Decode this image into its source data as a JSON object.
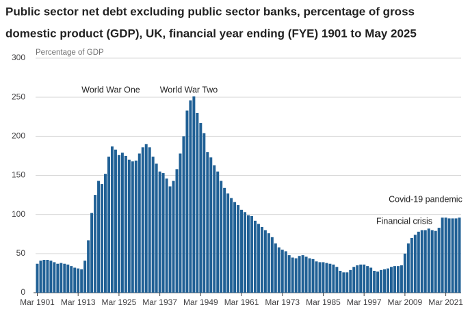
{
  "chart_data": {
    "type": "bar",
    "title": [
      "Public sector net debt excluding public sector banks, percentage of gross",
      "domestic product (GDP), UK, financial year ending (FYE) 1901 to May 2025"
    ],
    "y_label": "Percentage of GDP",
    "color": "#206095",
    "grid": true,
    "ylim": [
      0,
      300
    ],
    "yticks": [
      0,
      50,
      100,
      150,
      200,
      250,
      300
    ],
    "annotations": [
      "World War One",
      "World War Two",
      "Financial crisis",
      "Covid-19 pandemic"
    ],
    "categories": [
      "Mar 1901",
      null,
      null,
      null,
      null,
      null,
      null,
      null,
      null,
      null,
      null,
      null,
      "Mar 1913",
      null,
      null,
      null,
      null,
      null,
      null,
      null,
      null,
      null,
      null,
      null,
      "Mar 1925",
      null,
      null,
      null,
      null,
      null,
      null,
      null,
      null,
      null,
      null,
      null,
      "Mar 1937",
      null,
      null,
      null,
      null,
      null,
      null,
      null,
      null,
      null,
      null,
      null,
      "Mar 1949",
      null,
      null,
      null,
      null,
      null,
      null,
      null,
      null,
      null,
      null,
      null,
      "Mar 1961",
      null,
      null,
      null,
      null,
      null,
      null,
      null,
      null,
      null,
      null,
      null,
      "Mar 1973",
      null,
      null,
      null,
      null,
      null,
      null,
      null,
      null,
      null,
      null,
      null,
      "Mar 1985",
      null,
      null,
      null,
      null,
      null,
      null,
      null,
      null,
      null,
      null,
      null,
      "Mar 1997",
      null,
      null,
      null,
      null,
      null,
      null,
      null,
      null,
      null,
      null,
      null,
      "Mar 2009",
      null,
      null,
      null,
      null,
      null,
      null,
      null,
      null,
      null,
      null,
      null,
      "Mar 2021",
      null,
      null,
      null,
      null
    ],
    "values": [
      37,
      41,
      42,
      42,
      41,
      39,
      37,
      38,
      37,
      36,
      34,
      32,
      31,
      30,
      41,
      67,
      102,
      125,
      143,
      139,
      152,
      174,
      187,
      183,
      176,
      179,
      175,
      170,
      168,
      169,
      178,
      186,
      190,
      186,
      174,
      165,
      155,
      153,
      146,
      136,
      143,
      158,
      178,
      200,
      233,
      246,
      251,
      230,
      217,
      204,
      180,
      173,
      163,
      155,
      143,
      134,
      127,
      121,
      116,
      112,
      106,
      103,
      99,
      98,
      92,
      88,
      84,
      80,
      76,
      71,
      63,
      58,
      55,
      53,
      48,
      45,
      44,
      47,
      48,
      46,
      44,
      43,
      40,
      39,
      39,
      38,
      37,
      36,
      33,
      28,
      26,
      26,
      29,
      33,
      35,
      36,
      36,
      34,
      32,
      28,
      27,
      29,
      30,
      31,
      33,
      34,
      34,
      35,
      50,
      63,
      70,
      74,
      78,
      80,
      80,
      82,
      80,
      79,
      83,
      96,
      96,
      95,
      95,
      95,
      96
    ]
  }
}
